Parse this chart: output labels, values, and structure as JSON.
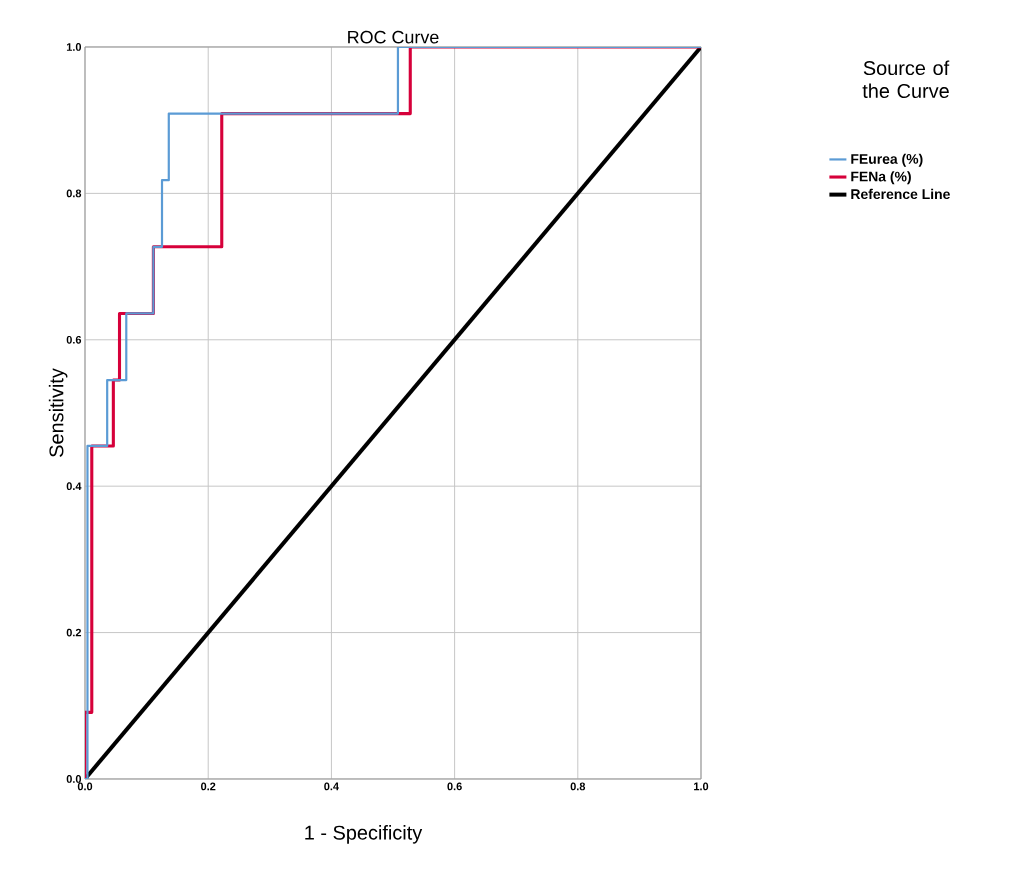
{
  "chart_data": {
    "type": "line",
    "title": "ROC Curve",
    "xlabel": "1 - Specificity",
    "ylabel": "Sensitivity",
    "legend_title": "Source of the Curve",
    "xlim": [
      0,
      1
    ],
    "ylim": [
      0,
      1
    ],
    "xticks": [
      {
        "value": 0,
        "label": "0.0"
      },
      {
        "value": 0.2,
        "label": "0.2"
      },
      {
        "value": 0.4,
        "label": "0.4"
      },
      {
        "value": 0.6,
        "label": "0.6"
      },
      {
        "value": 0.8,
        "label": "0.8"
      },
      {
        "value": 1,
        "label": "1.0"
      }
    ],
    "yticks": [
      {
        "value": 0,
        "label": "0.0"
      },
      {
        "value": 0.2,
        "label": "0.2"
      },
      {
        "value": 0.4,
        "label": "0.4"
      },
      {
        "value": 0.6,
        "label": "0.6"
      },
      {
        "value": 0.8,
        "label": "0.8"
      },
      {
        "value": 1,
        "label": "1.0"
      }
    ],
    "grid": true,
    "legend": "right",
    "marker": "none",
    "line_style": "solid",
    "series": [
      {
        "name": "FEurea (%)",
        "color": "#5b9bd5",
        "x": [
          0,
          0.004,
          0.004,
          0.036,
          0.036,
          0.067,
          0.067,
          0.111,
          0.111,
          0.125,
          0.125,
          0.136,
          0.136,
          0.508,
          0.508,
          1
        ],
        "values": [
          0,
          0,
          0.455,
          0.455,
          0.545,
          0.545,
          0.636,
          0.636,
          0.727,
          0.727,
          0.818,
          0.818,
          0.909,
          0.909,
          1,
          1
        ]
      },
      {
        "name": "FENa (%)",
        "color": "#d6003a",
        "x": [
          0,
          0,
          0.011,
          0.011,
          0.046,
          0.046,
          0.056,
          0.056,
          0.111,
          0.111,
          0.222,
          0.222,
          0.528,
          0.528,
          1
        ],
        "values": [
          0,
          0.091,
          0.091,
          0.455,
          0.455,
          0.545,
          0.545,
          0.636,
          0.636,
          0.727,
          0.727,
          0.909,
          0.909,
          1,
          1
        ]
      },
      {
        "name": "Reference Line",
        "color": "#000000",
        "x": [
          0,
          1
        ],
        "values": [
          0,
          1
        ]
      }
    ]
  }
}
